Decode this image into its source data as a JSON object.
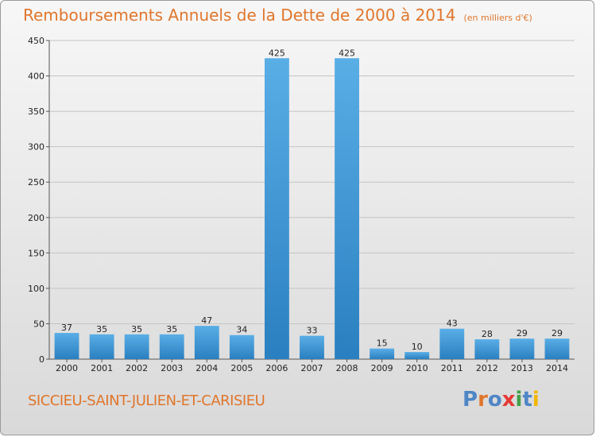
{
  "header": {
    "title": "Remboursements Annuels de la Dette de 2000 à 2014",
    "unit": "(en milliers d'€)"
  },
  "footer": {
    "commune": "SICCIEU-SAINT-JULIEN-ET-CARISIEU",
    "logo": "Proxiti"
  },
  "colors": {
    "accent": "#e0762c",
    "bar_light": "#5aaee6",
    "bar_dark": "#2a7fc0",
    "logo_letters": [
      "#4f86c6",
      "#e0762c",
      "#4f86c6",
      "#e53935",
      "#43a047",
      "#4f86c6",
      "#f2b705"
    ]
  },
  "chart_data": {
    "type": "bar",
    "title": "Remboursements Annuels de la Dette de 2000 à 2014",
    "categories": [
      "2000",
      "2001",
      "2002",
      "2003",
      "2004",
      "2005",
      "2006",
      "2007",
      "2008",
      "2009",
      "2010",
      "2011",
      "2012",
      "2013",
      "2014"
    ],
    "values": [
      37,
      35,
      35,
      35,
      47,
      34,
      425,
      33,
      425,
      15,
      10,
      43,
      28,
      29,
      29
    ],
    "ylim": [
      0,
      450
    ],
    "yticks": [
      0,
      50,
      100,
      150,
      200,
      250,
      300,
      350,
      400,
      450
    ],
    "grid": true,
    "legend": "none"
  }
}
